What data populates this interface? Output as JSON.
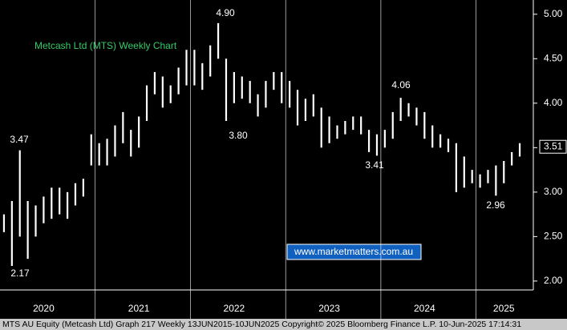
{
  "chart_data": {
    "type": "ohlc",
    "title": "Metcash Ltd (MTS) Weekly Chart",
    "footer": "MTS AU Equity (Metcash Ltd) Graph 217  Weekly 13JUN2015-10JUN2025 Copyright© 2025 Bloomberg Finance L.P.  10-Jun-2025 17:14:31",
    "watermark": "www.marketmatters.com.au",
    "color": "#ffffff",
    "categories": [
      null,
      null,
      null,
      null,
      null,
      "2020",
      null,
      null,
      null,
      null,
      null,
      null,
      null,
      null,
      null,
      null,
      null,
      "2021",
      null,
      null,
      null,
      null,
      null,
      null,
      null,
      null,
      null,
      null,
      null,
      "2022",
      null,
      null,
      null,
      null,
      null,
      null,
      null,
      null,
      null,
      null,
      null,
      "2023",
      null,
      null,
      null,
      null,
      null,
      null,
      null,
      null,
      null,
      null,
      null,
      "2024",
      null,
      null,
      null,
      null,
      null,
      null,
      null,
      null,
      null,
      "2025",
      null,
      null
    ],
    "low": [
      2.55,
      2.17,
      2.5,
      2.25,
      2.5,
      2.65,
      2.7,
      2.75,
      2.7,
      2.85,
      2.95,
      3.3,
      3.3,
      3.3,
      3.4,
      3.55,
      3.4,
      3.5,
      3.8,
      4.1,
      3.95,
      4.0,
      4.1,
      4.2,
      4.2,
      4.15,
      4.3,
      4.5,
      3.8,
      4.0,
      4.05,
      4.0,
      3.85,
      3.95,
      4.15,
      4.0,
      3.95,
      3.75,
      3.8,
      3.85,
      3.5,
      3.55,
      3.6,
      3.65,
      3.7,
      3.65,
      3.45,
      3.41,
      3.5,
      3.6,
      3.8,
      3.85,
      3.75,
      3.6,
      3.5,
      3.5,
      3.45,
      3.0,
      3.05,
      3.1,
      3.05,
      3.1,
      2.96,
      3.1,
      3.3,
      3.4
    ],
    "high": [
      2.75,
      2.9,
      3.47,
      2.9,
      2.85,
      2.95,
      3.05,
      3.05,
      3.0,
      3.1,
      3.15,
      3.65,
      3.55,
      3.6,
      3.75,
      3.9,
      3.7,
      3.85,
      4.2,
      4.35,
      4.3,
      4.2,
      4.4,
      4.6,
      4.6,
      4.45,
      4.65,
      4.9,
      4.5,
      4.35,
      4.3,
      4.25,
      4.1,
      4.25,
      4.35,
      4.35,
      4.25,
      4.15,
      4.05,
      4.1,
      3.95,
      3.85,
      3.75,
      3.8,
      3.85,
      3.85,
      3.7,
      3.65,
      3.7,
      3.9,
      4.06,
      4.0,
      3.95,
      3.9,
      3.75,
      3.65,
      3.6,
      3.55,
      3.4,
      3.25,
      3.2,
      3.25,
      3.3,
      3.35,
      3.45,
      3.55
    ],
    "annotations": [
      "4.90",
      "3.80",
      "3.47",
      "2.17",
      "3.41",
      "4.06",
      "2.96"
    ],
    "last_price": {
      "value": 3.51,
      "label": "3.51"
    },
    "ylim": [
      1.9,
      5.16
    ],
    "yticks": [
      {
        "value": 2,
        "label": "2.00"
      },
      {
        "value": 2.5,
        "label": "2.50"
      },
      {
        "value": 3,
        "label": "3.00"
      },
      {
        "value": 3.5,
        "label": "3.50"
      },
      {
        "value": 4,
        "label": "4.00"
      },
      {
        "value": 4.5,
        "label": "4.50"
      },
      {
        "value": 5,
        "label": "5.00"
      }
    ]
  }
}
